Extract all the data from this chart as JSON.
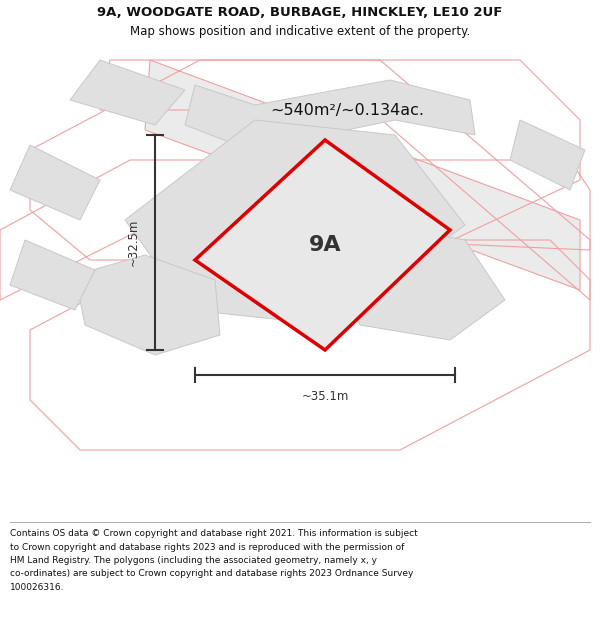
{
  "title_line1": "9A, WOODGATE ROAD, BURBAGE, HINCKLEY, LE10 2UF",
  "title_line2": "Map shows position and indicative extent of the property.",
  "area_label": "~540m²/~0.134ac.",
  "plot_label": "9A",
  "dim_width": "~35.1m",
  "dim_height": "~32.5m",
  "footer_lines": [
    "Contains OS data © Crown copyright and database right 2021. This information is subject",
    "to Crown copyright and database rights 2023 and is reproduced with the permission of",
    "HM Land Registry. The polygons (including the associated geometry, namely x, y",
    "co-ordinates) are subject to Crown copyright and database rights 2023 Ordnance Survey",
    "100026316."
  ],
  "bg_color": "#ffffff",
  "map_bg": "#ffffff",
  "plot_fill": "#e8e8e8",
  "plot_edge": "#dd0000",
  "neighbor_fill": "#e0e0e0",
  "neighbor_edge": "#c8c8c8",
  "road_outline_color": "#f0a0a0",
  "dim_color": "#333333"
}
